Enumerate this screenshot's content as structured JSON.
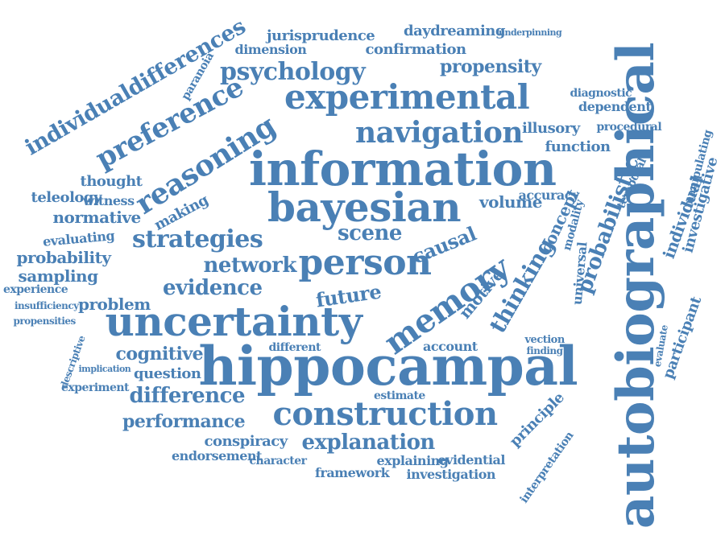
{
  "color": "#4a80b5",
  "words": [
    "autobiographical",
    "hippocampal",
    "information",
    "uncertainty",
    "bayesian",
    "experimental",
    "person",
    "construction",
    "memory",
    "navigation",
    "reasoning",
    "preference",
    "individualdifferences",
    "psychology",
    "strategies",
    "network",
    "evidence",
    "future",
    "thinking",
    "probabilistic",
    "scene",
    "cognitive",
    "difference",
    "performance",
    "explanation",
    "propensity",
    "jurisprudence",
    "daydreaming",
    "confirmation",
    "dimension",
    "function",
    "illusory",
    "dependent",
    "diagnostic",
    "concept",
    "causal",
    "motive",
    "normative",
    "probability",
    "sampling",
    "problem",
    "question",
    "experiment",
    "thought",
    "teleology",
    "making",
    "conspiracy",
    "endorsement",
    "framework",
    "investigation",
    "explaining",
    "evidential",
    "character",
    "estimate",
    "principle",
    "interpretation",
    "individual",
    "investigative",
    "participant",
    "manipulating",
    "procedural",
    "temporal",
    "volume",
    "accuracy",
    "account",
    "different",
    "evaluating",
    "experience",
    "insufficiency",
    "propensities",
    "witness",
    "paranoia",
    "descriptive",
    "implication",
    "universal",
    "modality",
    "vection",
    "finding",
    "evaluate",
    "underpinning"
  ]
}
